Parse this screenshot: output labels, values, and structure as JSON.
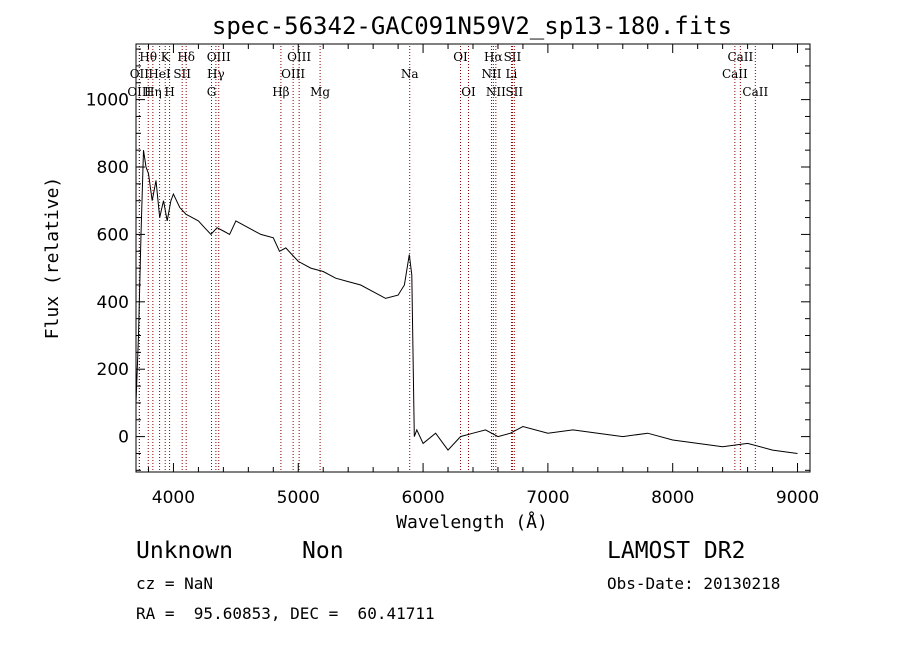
{
  "chart_data": {
    "type": "line",
    "title": "spec-56342-GAC091N59V2_sp13-180.fits",
    "xlabel": "Wavelength (Å)",
    "ylabel": "Flux (relative)",
    "xlim": [
      3700,
      9100
    ],
    "ylim": [
      -105,
      1165
    ],
    "xticks": [
      4000,
      5000,
      6000,
      7000,
      8000,
      9000
    ],
    "yticks": [
      0,
      200,
      400,
      600,
      800,
      1000
    ],
    "grid": false,
    "line_color": "#000000",
    "marker_color": "#8b0000",
    "spectrum": {
      "name": "",
      "x": [
        3700,
        3720,
        3740,
        3760,
        3780,
        3800,
        3830,
        3860,
        3890,
        3920,
        3950,
        3980,
        4000,
        4050,
        4100,
        4150,
        4200,
        4250,
        4300,
        4350,
        4400,
        4450,
        4500,
        4600,
        4700,
        4800,
        4850,
        4900,
        4950,
        5000,
        5100,
        5200,
        5300,
        5400,
        5500,
        5600,
        5700,
        5800,
        5850,
        5890,
        5910,
        5930,
        5950,
        6000,
        6100,
        6200,
        6300,
        6400,
        6500,
        6600,
        6700,
        6800,
        7000,
        7200,
        7400,
        7600,
        7800,
        8000,
        8200,
        8400,
        8600,
        8800,
        9000
      ],
      "y": [
        100,
        300,
        600,
        850,
        800,
        780,
        700,
        760,
        650,
        700,
        640,
        700,
        720,
        680,
        660,
        650,
        640,
        620,
        600,
        620,
        610,
        600,
        640,
        620,
        600,
        590,
        550,
        560,
        540,
        520,
        500,
        490,
        470,
        460,
        450,
        430,
        410,
        420,
        450,
        540,
        480,
        0,
        20,
        -20,
        10,
        -40,
        0,
        10,
        20,
        0,
        10,
        30,
        10,
        20,
        10,
        0,
        10,
        -10,
        -20,
        -30,
        -20,
        -40,
        -50
      ]
    },
    "line_markers": [
      {
        "label": "Hθ",
        "wavelength": 3798,
        "row": 1
      },
      {
        "label": "OII",
        "wavelength": 3727,
        "row": 2
      },
      {
        "label": "Hη",
        "wavelength": 3835,
        "row": 3
      },
      {
        "label": "OIII",
        "wavelength": 3727,
        "row": 3
      },
      {
        "label": "K",
        "wavelength": 3934,
        "row": 1
      },
      {
        "label": "HeI",
        "wavelength": 3889,
        "row": 2
      },
      {
        "label": "SII",
        "wavelength": 4070,
        "row": 2
      },
      {
        "label": "H",
        "wavelength": 3969,
        "row": 3
      },
      {
        "label": "Hδ",
        "wavelength": 4102,
        "row": 1
      },
      {
        "label": "OIII",
        "wavelength": 4363,
        "row": 1
      },
      {
        "label": "Hγ",
        "wavelength": 4340,
        "row": 2
      },
      {
        "label": "G",
        "wavelength": 4305,
        "row": 3
      },
      {
        "label": "OIII",
        "wavelength": 5007,
        "row": 1
      },
      {
        "label": "OIII",
        "wavelength": 4959,
        "row": 2
      },
      {
        "label": "Hβ",
        "wavelength": 4861,
        "row": 3
      },
      {
        "label": "Mg",
        "wavelength": 5175,
        "row": 3
      },
      {
        "label": "Na",
        "wavelength": 5893,
        "row": 2
      },
      {
        "label": "OI",
        "wavelength": 6300,
        "row": 1
      },
      {
        "label": "OI",
        "wavelength": 6364,
        "row": 3
      },
      {
        "label": "Hα",
        "wavelength": 6563,
        "row": 1
      },
      {
        "label": "SII",
        "wavelength": 6716,
        "row": 1
      },
      {
        "label": "NII",
        "wavelength": 6548,
        "row": 2
      },
      {
        "label": "Li",
        "wavelength": 6708,
        "row": 2
      },
      {
        "label": "NII",
        "wavelength": 6583,
        "row": 3
      },
      {
        "label": "SII",
        "wavelength": 6731,
        "row": 3
      },
      {
        "label": "CaII",
        "wavelength": 8542,
        "row": 1
      },
      {
        "label": "CaII",
        "wavelength": 8498,
        "row": 2
      },
      {
        "label": "CaII",
        "wavelength": 8662,
        "row": 3
      }
    ]
  },
  "info": {
    "class_label": "Unknown",
    "subclass_label": "Non",
    "survey": "LAMOST DR2",
    "redshift": "cz = NaN",
    "obs_date": "Obs-Date: 20130218",
    "coords": "RA =  95.60853, DEC =  60.41711"
  }
}
